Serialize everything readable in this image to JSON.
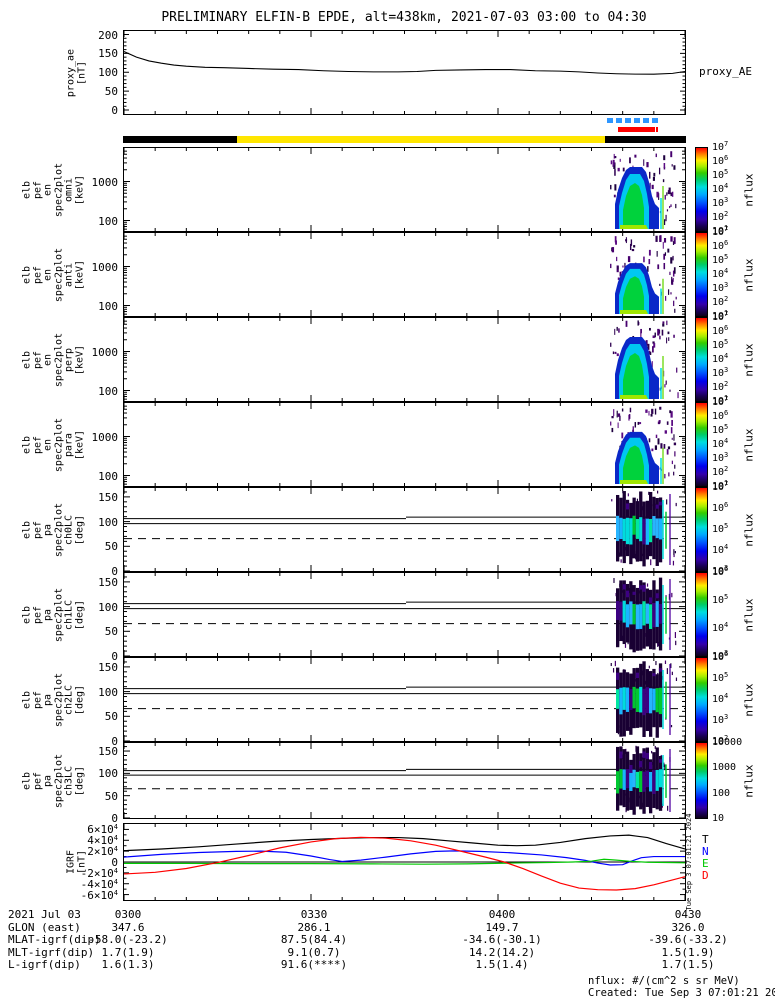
{
  "title": "PRELIMINARY ELFIN-B EPDE, alt=438km, 2021-07-03 03:00 to 04:30",
  "footer": {
    "unit_note": "nflux: #/(cm^2 s sr MeV)",
    "created": "Created: Tue Sep  3 07:01:21 2024"
  },
  "created_vertical": "Tue Sep  3 07:01:21 2024",
  "proxy_panel": {
    "left_label_lines": [
      "proxy_ae",
      "[nT]"
    ],
    "right_label": "proxy_AE",
    "yticks": [
      "200",
      "150",
      "100",
      "50",
      "0"
    ]
  },
  "igrf_panel": {
    "left_label_lines": [
      "IGRF",
      "[nT]"
    ],
    "yticks": [
      "6×10^4",
      "4×10^4",
      "2×10^4",
      "0",
      "-2×10^4",
      "-4×10^4",
      "-6×10^4"
    ],
    "series_labels": [
      {
        "text": "T",
        "color": "#000000"
      },
      {
        "text": "N",
        "color": "#0000ff"
      },
      {
        "text": "E",
        "color": "#00c800"
      },
      {
        "text": "D",
        "color": "#ff0000"
      }
    ]
  },
  "xaxis": {
    "labels": [
      "0300",
      "0330",
      "0400",
      "0430"
    ]
  },
  "panels": [
    {
      "id": "en-omni",
      "kind": "energy",
      "label_lines": [
        "elb",
        "pef",
        "en",
        "spec2plot",
        "omni",
        "[keV]"
      ],
      "yticks": [
        "1000",
        "100"
      ],
      "cbar_ticks": [
        "10^7",
        "10^6",
        "10^5",
        "10^4",
        "10^3",
        "10^2",
        "10^1"
      ],
      "cbar_label": "nflux",
      "strength": 1.0
    },
    {
      "id": "en-anti",
      "kind": "energy",
      "label_lines": [
        "elb",
        "pef",
        "en",
        "spec2plot",
        "anti",
        "[keV]"
      ],
      "yticks": [
        "1000",
        "100"
      ],
      "cbar_ticks": [
        "10^7",
        "10^6",
        "10^5",
        "10^4",
        "10^3",
        "10^2",
        "10^1"
      ],
      "cbar_label": "nflux",
      "strength": 0.55
    },
    {
      "id": "en-perp",
      "kind": "energy",
      "label_lines": [
        "elb",
        "pef",
        "en",
        "spec2plot",
        "perp",
        "[keV]"
      ],
      "yticks": [
        "1000",
        "100"
      ],
      "cbar_ticks": [
        "10^7",
        "10^6",
        "10^5",
        "10^4",
        "10^3",
        "10^2",
        "10^1"
      ],
      "cbar_label": "nflux",
      "strength": 1.0
    },
    {
      "id": "en-para",
      "kind": "energy",
      "label_lines": [
        "elb",
        "pef",
        "en",
        "spec2plot",
        "para",
        "[keV]"
      ],
      "yticks": [
        "1000",
        "100"
      ],
      "cbar_ticks": [
        "10^7",
        "10^6",
        "10^5",
        "10^4",
        "10^3",
        "10^2",
        "10^1"
      ],
      "cbar_label": "nflux",
      "strength": 0.6
    },
    {
      "id": "pa-ch0LC",
      "kind": "pa",
      "label_lines": [
        "elb",
        "pef",
        "pa",
        "spec2plot",
        "ch0LC",
        "[deg]"
      ],
      "yticks": [
        "150",
        "100",
        "50",
        "0"
      ],
      "cbar_ticks": [
        "10^7",
        "10^6",
        "10^5",
        "10^4",
        "10^3"
      ],
      "cbar_label": "nflux",
      "strength": 1.0
    },
    {
      "id": "pa-ch1LC",
      "kind": "pa",
      "label_lines": [
        "elb",
        "pef",
        "pa",
        "spec2plot",
        "ch1LC",
        "[deg]"
      ],
      "yticks": [
        "150",
        "100",
        "50",
        "0"
      ],
      "cbar_ticks": [
        "10^6",
        "10^5",
        "10^4",
        "10^3"
      ],
      "cbar_label": "nflux",
      "strength": 0.85
    },
    {
      "id": "pa-ch2LC",
      "kind": "pa",
      "label_lines": [
        "elb",
        "pef",
        "pa",
        "spec2plot",
        "ch2LC",
        "[deg]"
      ],
      "yticks": [
        "150",
        "100",
        "50",
        "0"
      ],
      "cbar_ticks": [
        "10^6",
        "10^5",
        "10^4",
        "10^3",
        "10^2"
      ],
      "cbar_label": "nflux",
      "strength": 0.7
    },
    {
      "id": "pa-ch3LC",
      "kind": "pa",
      "label_lines": [
        "elb",
        "pef",
        "pa",
        "spec2plot",
        "ch3LC",
        "[deg]"
      ],
      "yticks": [
        "150",
        "100",
        "50",
        "0"
      ],
      "cbar_ticks": [
        "10000",
        "1000",
        "100",
        "10"
      ],
      "cbar_label": "nflux",
      "strength": 0.5
    }
  ],
  "table": {
    "rows": [
      {
        "label": "2021 Jul 03",
        "values": [
          "0300",
          "0330",
          "0400",
          "0430"
        ]
      },
      {
        "label": "GLON (east)",
        "values": [
          "347.6",
          "286.1",
          "149.7",
          "326.0"
        ]
      },
      {
        "label": "MLAT-igrf(dip)",
        "values": [
          "-58.0(-23.2)",
          "87.5(84.4)",
          "-34.6(-30.1)",
          "-39.6(-33.2)"
        ]
      },
      {
        "label": "MLT-igrf(dip)",
        "values": [
          "1.7(1.9)",
          "9.1(0.7)",
          "14.2(14.2)",
          "1.5(1.9)"
        ]
      },
      {
        "label": "L-igrf(dip)",
        "values": [
          "1.6(1.3)",
          "91.6(****)",
          "1.5(1.4)",
          "1.7(1.5)"
        ]
      }
    ]
  },
  "chart_data": {
    "type": "multi-panel time series and spectrograms",
    "x_range": [
      "03:00",
      "04:30"
    ],
    "x_tick_labels": [
      "0300",
      "0330",
      "0400",
      "0430"
    ],
    "proxy_ae": {
      "type": "line",
      "ylabel": "proxy_ae [nT]",
      "ylim": [
        0,
        200
      ],
      "color": "#000000",
      "points": [
        [
          0,
          155
        ],
        [
          2,
          140
        ],
        [
          4,
          130
        ],
        [
          6,
          124
        ],
        [
          8,
          119
        ],
        [
          10,
          116
        ],
        [
          13,
          113
        ],
        [
          16,
          112
        ],
        [
          20,
          110
        ],
        [
          24,
          108
        ],
        [
          28,
          107
        ],
        [
          32,
          104
        ],
        [
          36,
          102
        ],
        [
          40,
          101
        ],
        [
          44,
          101
        ],
        [
          47,
          102
        ],
        [
          50,
          105
        ],
        [
          54,
          106
        ],
        [
          58,
          107
        ],
        [
          62,
          107
        ],
        [
          66,
          104
        ],
        [
          70,
          103
        ],
        [
          73,
          101
        ],
        [
          76,
          98
        ],
        [
          79,
          96
        ],
        [
          82,
          95
        ],
        [
          85,
          95
        ],
        [
          88,
          97
        ],
        [
          90,
          102
        ]
      ]
    },
    "event_bars": {
      "blue_dashed": {
        "color": "#2e96ff",
        "start_min": 77.4,
        "end_min": 85.6
      },
      "red": {
        "color": "#ff0000",
        "start_min": 79.1,
        "end_min": 85.5
      },
      "zones": [
        {
          "color": "#000000",
          "start_min": 0,
          "end_min": 18.2
        },
        {
          "color": "#ffe600",
          "start_min": 18.2,
          "end_min": 77.0
        },
        {
          "color": "#000000",
          "start_min": 77.0,
          "end_min": 90.0
        }
      ]
    },
    "energy_spectrograms": [
      {
        "panel": "omni",
        "ylabel": "[keV]",
        "yticks_keV": [
          100,
          1000
        ],
        "yscale": "log",
        "colorbar_range": [
          "1e1",
          "1e7"
        ],
        "colorbar_label": "nflux",
        "event_window": "04:19-04:26",
        "peak_nflux": "~1e6"
      },
      {
        "panel": "anti",
        "ylabel": "[keV]",
        "yticks_keV": [
          100,
          1000
        ],
        "yscale": "log",
        "colorbar_range": [
          "1e1",
          "1e7"
        ],
        "colorbar_label": "nflux",
        "event_window": "04:19-04:26",
        "peak_nflux": "~1e5"
      },
      {
        "panel": "perp",
        "ylabel": "[keV]",
        "yticks_keV": [
          100,
          1000
        ],
        "yscale": "log",
        "colorbar_range": [
          "1e1",
          "1e7"
        ],
        "colorbar_label": "nflux",
        "event_window": "04:19-04:26",
        "peak_nflux": "~1e6"
      },
      {
        "panel": "para",
        "ylabel": "[keV]",
        "yticks_keV": [
          100,
          1000
        ],
        "yscale": "log",
        "colorbar_range": [
          "1e1",
          "1e7"
        ],
        "colorbar_label": "nflux",
        "event_window": "04:19-04:26",
        "peak_nflux": "~1e5"
      }
    ],
    "pa_spectrograms": [
      {
        "panel": "ch0LC",
        "ylabel": "[deg]",
        "yticks_deg": [
          0,
          50,
          100,
          150
        ],
        "colorbar_range": [
          "1e3",
          "1e7"
        ],
        "colorbar_label": "nflux",
        "losscone_line_deg": [
          106,
          109
        ],
        "second_line_deg": 96,
        "dashed_line_deg": 65.5,
        "event_window": "04:19-04:26"
      },
      {
        "panel": "ch1LC",
        "ylabel": "[deg]",
        "yticks_deg": [
          0,
          50,
          100,
          150
        ],
        "colorbar_range": [
          "1e3",
          "1e6"
        ],
        "colorbar_label": "nflux",
        "losscone_line_deg": [
          106,
          109
        ],
        "second_line_deg": 96,
        "dashed_line_deg": 65.5,
        "event_window": "04:19-04:26"
      },
      {
        "panel": "ch2LC",
        "ylabel": "[deg]",
        "yticks_deg": [
          0,
          50,
          100,
          150
        ],
        "colorbar_range": [
          "1e2",
          "1e6"
        ],
        "colorbar_label": "nflux",
        "losscone_line_deg": [
          106,
          109
        ],
        "second_line_deg": 96,
        "dashed_line_deg": 65.5,
        "event_window": "04:19-04:26"
      },
      {
        "panel": "ch3LC",
        "ylabel": "[deg]",
        "yticks_deg": [
          0,
          50,
          100,
          150
        ],
        "colorbar_range": [
          "1e1",
          "1e4"
        ],
        "colorbar_label": "nflux",
        "losscone_line_deg": [
          106,
          109
        ],
        "second_line_deg": 96,
        "dashed_line_deg": 65.5,
        "event_window": "04:19-04:26"
      }
    ],
    "igrf": {
      "type": "line",
      "ylabel": "IGRF [nT]",
      "ylim": [
        -70000,
        70000
      ],
      "series": [
        {
          "name": "T",
          "color": "#000000",
          "points": [
            [
              0,
              2.1
            ],
            [
              6,
              2.4
            ],
            [
              12,
              2.8
            ],
            [
              18,
              3.3
            ],
            [
              24,
              3.8
            ],
            [
              30,
              4.15
            ],
            [
              36,
              4.4
            ],
            [
              40,
              4.5
            ],
            [
              44,
              4.5
            ],
            [
              48,
              4.3
            ],
            [
              52,
              3.9
            ],
            [
              56,
              3.5
            ],
            [
              60,
              3.1
            ],
            [
              63,
              3.0
            ],
            [
              66,
              3.1
            ],
            [
              70,
              3.6
            ],
            [
              74,
              4.3
            ],
            [
              78,
              4.8
            ],
            [
              81,
              4.95
            ],
            [
              84,
              4.5
            ],
            [
              87,
              3.4
            ],
            [
              90,
              2.4
            ]
          ]
        },
        {
          "name": "N",
          "color": "#0000ff",
          "points": [
            [
              0,
              0.9
            ],
            [
              6,
              1.4
            ],
            [
              12,
              1.75
            ],
            [
              18,
              1.95
            ],
            [
              22,
              2.0
            ],
            [
              26,
              1.8
            ],
            [
              30,
              1.1
            ],
            [
              33,
              0.45
            ],
            [
              35,
              0.1
            ],
            [
              38,
              0.35
            ],
            [
              42,
              0.9
            ],
            [
              46,
              1.5
            ],
            [
              50,
              1.95
            ],
            [
              53,
              2.05
            ],
            [
              57,
              1.95
            ],
            [
              62,
              1.7
            ],
            [
              67,
              1.3
            ],
            [
              71,
              0.8
            ],
            [
              74,
              0.3
            ],
            [
              76,
              -0.2
            ],
            [
              78,
              -0.55
            ],
            [
              80,
              -0.5
            ],
            [
              81.5,
              0.2
            ],
            [
              83,
              0.8
            ],
            [
              85,
              1.0
            ],
            [
              90,
              1.0
            ]
          ]
        },
        {
          "name": "E",
          "color": "#00c800",
          "points": [
            [
              0,
              -0.25
            ],
            [
              10,
              -0.25
            ],
            [
              20,
              -0.3
            ],
            [
              30,
              -0.3
            ],
            [
              40,
              -0.35
            ],
            [
              48,
              -0.4
            ],
            [
              55,
              -0.35
            ],
            [
              62,
              -0.2
            ],
            [
              68,
              -0.1
            ],
            [
              72,
              0.0
            ],
            [
              75,
              0.15
            ],
            [
              77,
              0.5
            ],
            [
              79,
              0.35
            ],
            [
              81,
              0.15
            ],
            [
              84,
              -0.05
            ],
            [
              90,
              -0.15
            ]
          ]
        },
        {
          "name": "D",
          "color": "#ff0000",
          "points": [
            [
              0,
              -2.2
            ],
            [
              5,
              -1.9
            ],
            [
              10,
              -1.2
            ],
            [
              15,
              -0.1
            ],
            [
              20,
              1.2
            ],
            [
              25,
              2.6
            ],
            [
              30,
              3.7
            ],
            [
              34,
              4.3
            ],
            [
              38,
              4.55
            ],
            [
              42,
              4.4
            ],
            [
              46,
              3.9
            ],
            [
              50,
              3.1
            ],
            [
              54,
              2.0
            ],
            [
              58,
              0.9
            ],
            [
              61,
              0.0
            ],
            [
              64,
              -1.2
            ],
            [
              67,
              -2.6
            ],
            [
              70,
              -3.9
            ],
            [
              73,
              -4.8
            ],
            [
              76,
              -5.1
            ],
            [
              79,
              -5.15
            ],
            [
              82,
              -4.9
            ],
            [
              85,
              -4.2
            ],
            [
              88,
              -3.3
            ],
            [
              90,
              -2.7
            ]
          ]
        }
      ],
      "units_note": "values in 1e4 nT"
    },
    "ephemeris_table": "see table key"
  }
}
